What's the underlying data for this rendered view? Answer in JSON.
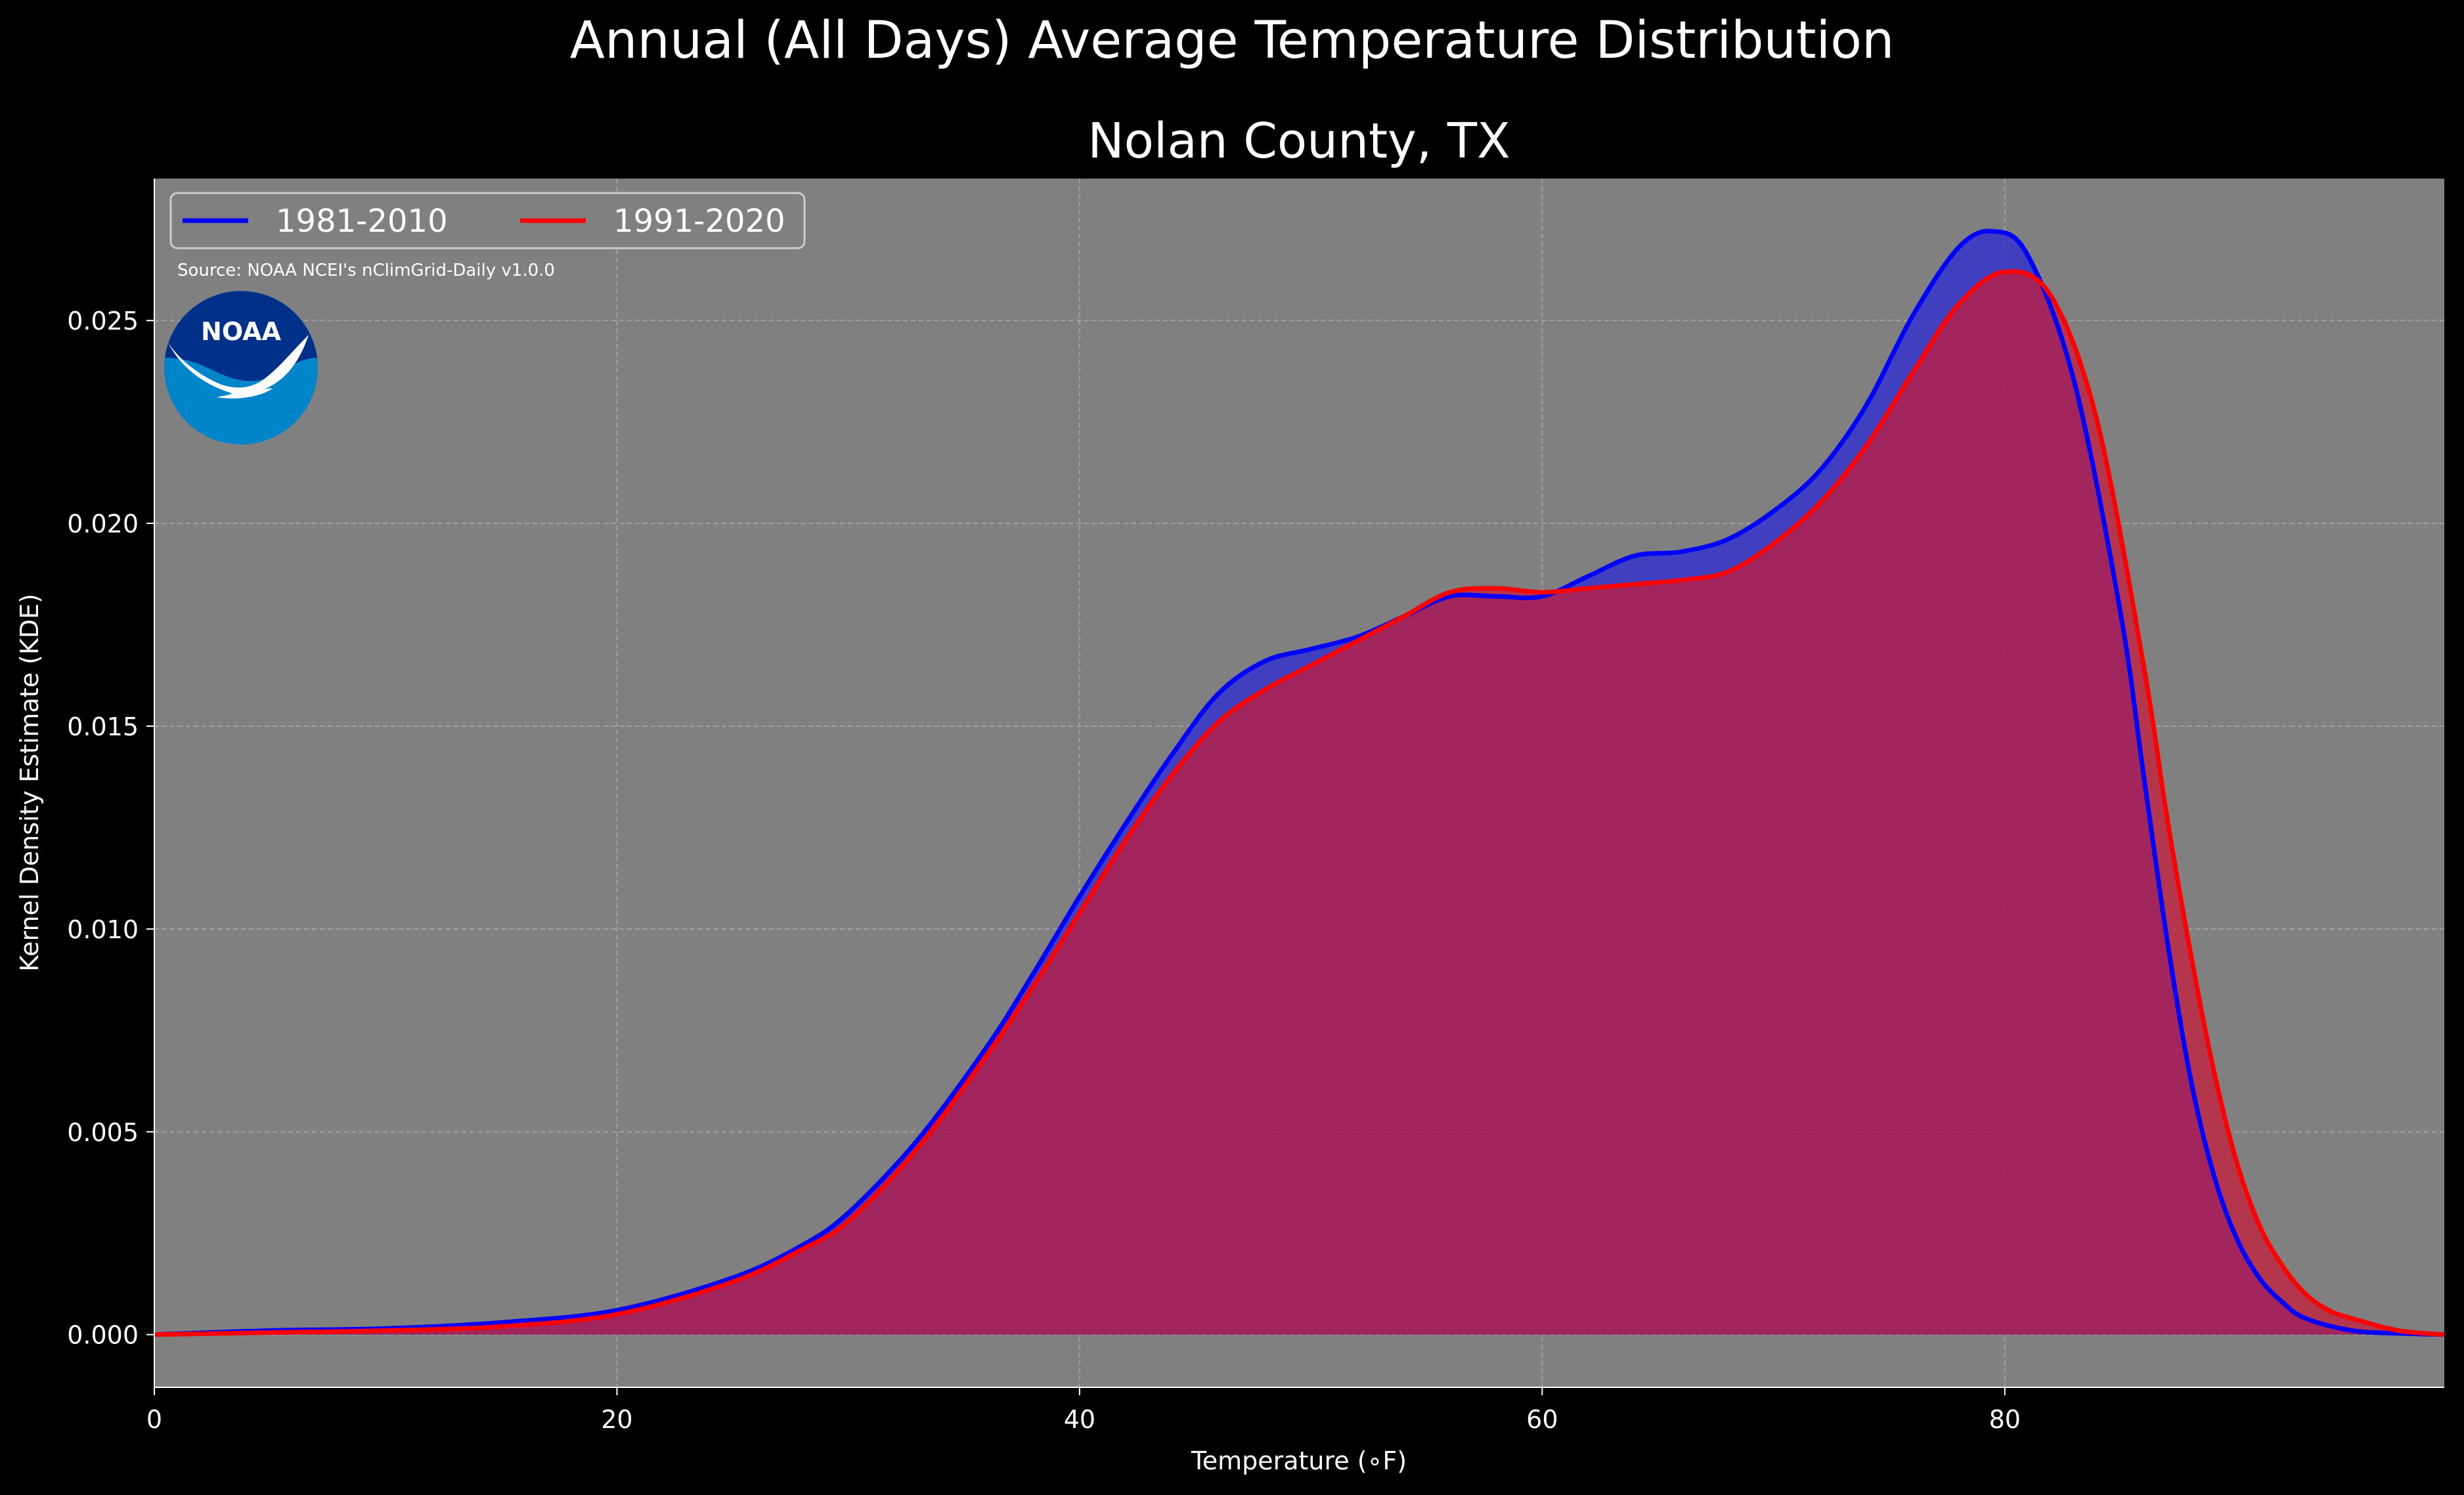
{
  "chart_data": {
    "type": "area",
    "suptitle": "Annual (All Days) Average Temperature Distribution",
    "title": "Nolan County, TX",
    "xlabel": "Temperature (∘F)",
    "ylabel": "Kernel Density Estimate (KDE)",
    "xlim": [
      0,
      99
    ],
    "ylim": [
      -0.0013,
      0.0285
    ],
    "xticks": [
      0,
      20,
      40,
      60,
      80
    ],
    "xtick_labels": [
      "0",
      "20",
      "40",
      "60",
      "80"
    ],
    "yticks": [
      0.0,
      0.005,
      0.01,
      0.015,
      0.02,
      0.025
    ],
    "ytick_labels": [
      "0.000",
      "0.005",
      "0.010",
      "0.015",
      "0.020",
      "0.025"
    ],
    "grid": true,
    "legend_position": "top-left",
    "source_note": "Source: NOAA NCEI's nClimGrid-Daily v1.0.0",
    "logo_text": "NOAA",
    "series": [
      {
        "name": "1981-2010",
        "color": "#0000ff",
        "fill_color": "#2a2ad6",
        "x": [
          0,
          5,
          10,
          15,
          20,
          25,
          28,
          30,
          33,
          36,
          38,
          40,
          42,
          44,
          46,
          48,
          50,
          52,
          54,
          56,
          58,
          60,
          62,
          64,
          66,
          68,
          70,
          72,
          74,
          76,
          78,
          79.5,
          81,
          83,
          85,
          86,
          87,
          88,
          89,
          90,
          91,
          92,
          93,
          95,
          97,
          99
        ],
        "y": [
          0.0,
          0.0001,
          0.00015,
          0.0003,
          0.0006,
          0.0014,
          0.0022,
          0.003,
          0.0048,
          0.0071,
          0.0089,
          0.0108,
          0.0126,
          0.0143,
          0.0158,
          0.0166,
          0.0169,
          0.0172,
          0.0177,
          0.0182,
          0.0182,
          0.0182,
          0.0187,
          0.0192,
          0.0193,
          0.0196,
          0.0203,
          0.0213,
          0.0229,
          0.0251,
          0.0268,
          0.0272,
          0.0266,
          0.0235,
          0.0178,
          0.0138,
          0.0098,
          0.0064,
          0.004,
          0.0024,
          0.0014,
          0.0008,
          0.0004,
          0.0001,
          3e-05,
          0.0
        ]
      },
      {
        "name": "1991-2020",
        "color": "#ff0000",
        "fill_color": "#c41e3c",
        "x": [
          0,
          5,
          10,
          15,
          20,
          25,
          28,
          30,
          33,
          36,
          38,
          40,
          42,
          44,
          46,
          48,
          50,
          52,
          54,
          56,
          58,
          60,
          62,
          64,
          66,
          68,
          70,
          72,
          74,
          76,
          78,
          80,
          82,
          84,
          86,
          87,
          88,
          89,
          90,
          91,
          92,
          93,
          94,
          95,
          97,
          99
        ],
        "y": [
          0.0,
          5e-05,
          0.0001,
          0.0002,
          0.0005,
          0.0013,
          0.0021,
          0.0028,
          0.0046,
          0.0069,
          0.0086,
          0.0104,
          0.0122,
          0.0138,
          0.0151,
          0.0159,
          0.0165,
          0.0171,
          0.0177,
          0.0183,
          0.0184,
          0.0183,
          0.0184,
          0.0185,
          0.0186,
          0.0188,
          0.0195,
          0.0205,
          0.0219,
          0.0237,
          0.0254,
          0.0262,
          0.0256,
          0.0225,
          0.0165,
          0.0128,
          0.0095,
          0.0066,
          0.0043,
          0.0027,
          0.0017,
          0.001,
          0.0006,
          0.0004,
          0.0001,
          0.0
        ]
      }
    ]
  }
}
